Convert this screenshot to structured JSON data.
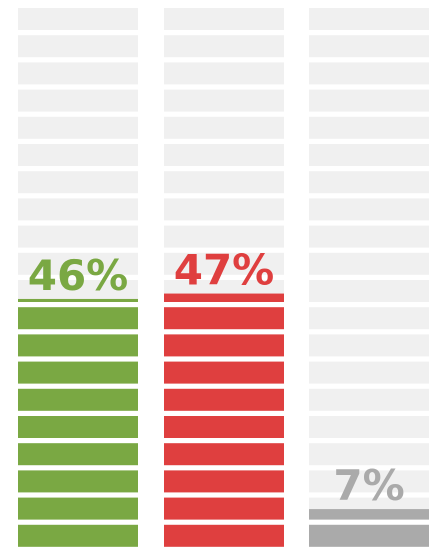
{
  "chart_data": {
    "type": "bar",
    "title": "",
    "xlabel": "",
    "ylabel": "",
    "ylim": [
      0,
      100
    ],
    "grid": false,
    "legend": "none",
    "categories": [
      "",
      "",
      ""
    ],
    "values": [
      46,
      47,
      7
    ],
    "labels": [
      "46%",
      "47%",
      "7%"
    ],
    "colors": [
      "#7aa843",
      "#df3f3f",
      "#aaaaaa"
    ],
    "empty_color": "#f0f0f0",
    "segments_per_bar": 20
  }
}
